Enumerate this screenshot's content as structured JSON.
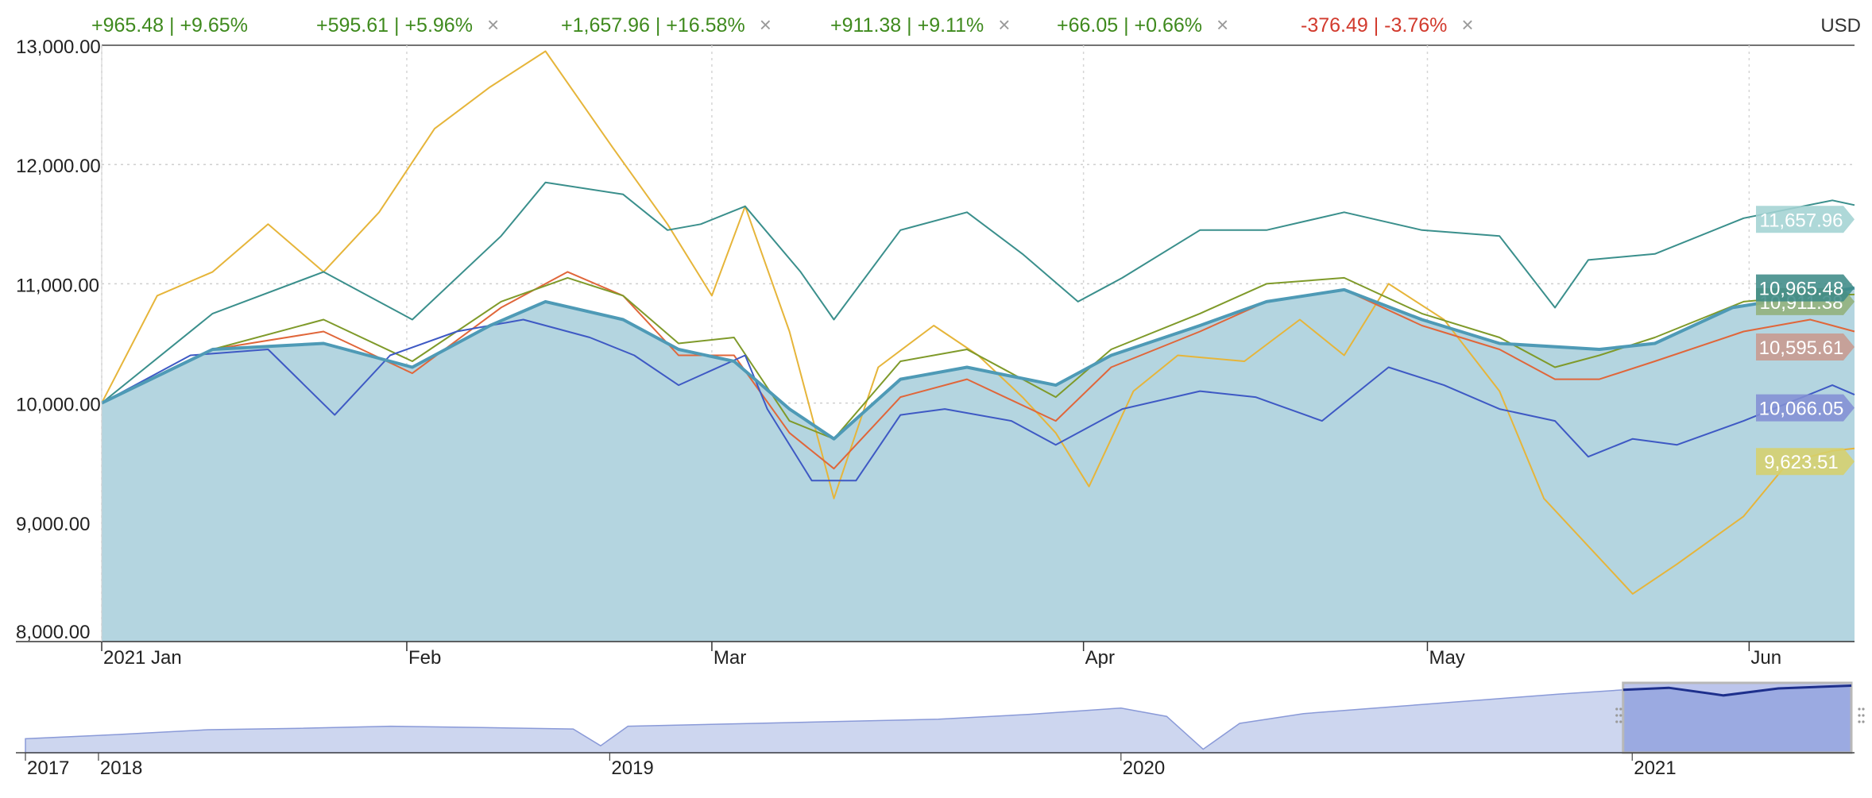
{
  "legend": [
    {
      "text": "+965.48 | +9.65%",
      "sign": "pos",
      "closable": false
    },
    {
      "text": "+595.61 | +5.96%",
      "sign": "pos",
      "closable": true
    },
    {
      "text": "+1,657.96 | +16.58%",
      "sign": "pos",
      "closable": true
    },
    {
      "text": "+911.38 | +9.11%",
      "sign": "pos",
      "closable": true
    },
    {
      "text": "+66.05 | +0.66%",
      "sign": "pos",
      "closable": true
    },
    {
      "text": "-376.49 | -3.76%",
      "sign": "neg",
      "closable": true
    }
  ],
  "close_glyph": "×",
  "currency": "USD",
  "chart_data": {
    "type": "line",
    "ylim": [
      8000,
      13000
    ],
    "y_ticks": [
      {
        "value": 8000,
        "label": "8,000.00"
      },
      {
        "value": 9000,
        "label": "9,000.00"
      },
      {
        "value": 10000,
        "label": "10,000.00"
      },
      {
        "value": 11000,
        "label": "11,000.00"
      },
      {
        "value": 12000,
        "label": "12,000.00"
      },
      {
        "value": 13000,
        "label": "13,000.00"
      }
    ],
    "x_ticks": [
      {
        "t": 0,
        "label": "2021 Jan"
      },
      {
        "t": 27.5,
        "label": "Feb"
      },
      {
        "t": 55,
        "label": "Mar"
      },
      {
        "t": 88.5,
        "label": "Apr"
      },
      {
        "t": 119.5,
        "label": "May"
      },
      {
        "t": 148.5,
        "label": "Jun"
      }
    ],
    "series": [
      {
        "id": "main",
        "color": "#4e9ab6",
        "fill": "#b4d5e0",
        "end_label": "10,965.48",
        "label_color": "#3f8b88",
        "label_at": 10965,
        "points": [
          [
            0,
            10000
          ],
          [
            10,
            10450
          ],
          [
            20,
            10500
          ],
          [
            28,
            10300
          ],
          [
            35,
            10650
          ],
          [
            40,
            10850
          ],
          [
            47,
            10700
          ],
          [
            52,
            10450
          ],
          [
            57,
            10350
          ],
          [
            62,
            9950
          ],
          [
            66,
            9700
          ],
          [
            72,
            10200
          ],
          [
            78,
            10300
          ],
          [
            86,
            10150
          ],
          [
            91,
            10400
          ],
          [
            99,
            10650
          ],
          [
            105,
            10850
          ],
          [
            112,
            10950
          ],
          [
            119,
            10700
          ],
          [
            126,
            10500
          ],
          [
            135,
            10450
          ],
          [
            140,
            10500
          ],
          [
            147,
            10800
          ],
          [
            158,
            10965
          ]
        ]
      },
      {
        "id": "teal",
        "color": "#3a8f8c",
        "end_label": "11,657.96",
        "label_color": "#a3d3d3",
        "label_at": 11540,
        "points": [
          [
            0,
            10000
          ],
          [
            10,
            10750
          ],
          [
            20,
            11100
          ],
          [
            28,
            10700
          ],
          [
            36,
            11400
          ],
          [
            40,
            11850
          ],
          [
            47,
            11750
          ],
          [
            51,
            11450
          ],
          [
            54,
            11500
          ],
          [
            58,
            11650
          ],
          [
            63,
            11100
          ],
          [
            66,
            10700
          ],
          [
            72,
            11450
          ],
          [
            78,
            11600
          ],
          [
            83,
            11250
          ],
          [
            88,
            10850
          ],
          [
            92,
            11050
          ],
          [
            99,
            11450
          ],
          [
            105,
            11450
          ],
          [
            112,
            11600
          ],
          [
            119,
            11450
          ],
          [
            126,
            11400
          ],
          [
            131,
            10800
          ],
          [
            134,
            11200
          ],
          [
            140,
            11250
          ],
          [
            148,
            11550
          ],
          [
            156,
            11700
          ],
          [
            158,
            11660
          ]
        ]
      },
      {
        "id": "gold",
        "color": "#e6b53a",
        "end_label": "9,623.51",
        "label_color": "#d6d06c",
        "label_at": 9510,
        "points": [
          [
            0,
            10000
          ],
          [
            5,
            10900
          ],
          [
            10,
            11100
          ],
          [
            15,
            11500
          ],
          [
            20,
            11100
          ],
          [
            25,
            11600
          ],
          [
            30,
            12300
          ],
          [
            35,
            12650
          ],
          [
            40,
            12950
          ],
          [
            46,
            12150
          ],
          [
            51,
            11500
          ],
          [
            55,
            10900
          ],
          [
            58,
            11650
          ],
          [
            62,
            10600
          ],
          [
            66,
            9200
          ],
          [
            70,
            10300
          ],
          [
            75,
            10650
          ],
          [
            79,
            10400
          ],
          [
            83,
            10050
          ],
          [
            86,
            9750
          ],
          [
            89,
            9300
          ],
          [
            93,
            10100
          ],
          [
            97,
            10400
          ],
          [
            103,
            10350
          ],
          [
            108,
            10700
          ],
          [
            112,
            10400
          ],
          [
            116,
            11000
          ],
          [
            121,
            10700
          ],
          [
            126,
            10100
          ],
          [
            130,
            9200
          ],
          [
            134,
            8800
          ],
          [
            138,
            8400
          ],
          [
            142,
            8650
          ],
          [
            148,
            9050
          ],
          [
            152,
            9500
          ],
          [
            156,
            9600
          ],
          [
            158,
            9620
          ]
        ]
      },
      {
        "id": "orange",
        "color": "#e0663a",
        "end_label": "10,595.61",
        "label_color": "#c89a8e",
        "label_at": 10470,
        "points": [
          [
            0,
            10000
          ],
          [
            10,
            10450
          ],
          [
            20,
            10600
          ],
          [
            28,
            10250
          ],
          [
            36,
            10800
          ],
          [
            42,
            11100
          ],
          [
            47,
            10900
          ],
          [
            52,
            10400
          ],
          [
            57,
            10400
          ],
          [
            62,
            9750
          ],
          [
            66,
            9450
          ],
          [
            72,
            10050
          ],
          [
            78,
            10200
          ],
          [
            86,
            9850
          ],
          [
            91,
            10300
          ],
          [
            99,
            10600
          ],
          [
            105,
            10850
          ],
          [
            112,
            10950
          ],
          [
            119,
            10650
          ],
          [
            126,
            10450
          ],
          [
            131,
            10200
          ],
          [
            135,
            10200
          ],
          [
            140,
            10350
          ],
          [
            148,
            10600
          ],
          [
            154,
            10700
          ],
          [
            158,
            10600
          ]
        ]
      },
      {
        "id": "olive",
        "color": "#7f9a2a",
        "end_label": "10,911.38",
        "label_color": "#92b07a",
        "label_at": 10850,
        "points": [
          [
            0,
            10000
          ],
          [
            10,
            10450
          ],
          [
            20,
            10700
          ],
          [
            28,
            10350
          ],
          [
            36,
            10850
          ],
          [
            42,
            11050
          ],
          [
            47,
            10900
          ],
          [
            52,
            10500
          ],
          [
            57,
            10550
          ],
          [
            62,
            9850
          ],
          [
            66,
            9700
          ],
          [
            72,
            10350
          ],
          [
            78,
            10450
          ],
          [
            86,
            10050
          ],
          [
            91,
            10450
          ],
          [
            99,
            10750
          ],
          [
            105,
            11000
          ],
          [
            112,
            11050
          ],
          [
            119,
            10750
          ],
          [
            126,
            10550
          ],
          [
            131,
            10300
          ],
          [
            135,
            10400
          ],
          [
            140,
            10550
          ],
          [
            148,
            10850
          ],
          [
            154,
            10900
          ],
          [
            158,
            10910
          ]
        ]
      },
      {
        "id": "blue",
        "color": "#3e59c4",
        "end_label": "10,066.05",
        "label_color": "#8390d4",
        "label_at": 9960,
        "points": [
          [
            0,
            10000
          ],
          [
            8,
            10400
          ],
          [
            15,
            10450
          ],
          [
            21,
            9900
          ],
          [
            26,
            10400
          ],
          [
            32,
            10600
          ],
          [
            38,
            10700
          ],
          [
            44,
            10550
          ],
          [
            48,
            10400
          ],
          [
            52,
            10150
          ],
          [
            58,
            10400
          ],
          [
            60,
            9950
          ],
          [
            64,
            9350
          ],
          [
            68,
            9350
          ],
          [
            72,
            9900
          ],
          [
            76,
            9950
          ],
          [
            82,
            9850
          ],
          [
            86,
            9650
          ],
          [
            92,
            9950
          ],
          [
            99,
            10100
          ],
          [
            104,
            10050
          ],
          [
            110,
            9850
          ],
          [
            116,
            10300
          ],
          [
            121,
            10150
          ],
          [
            126,
            9950
          ],
          [
            131,
            9850
          ],
          [
            134,
            9550
          ],
          [
            138,
            9700
          ],
          [
            142,
            9650
          ],
          [
            148,
            9850
          ],
          [
            152,
            10000
          ],
          [
            156,
            10150
          ],
          [
            158,
            10070
          ]
        ]
      }
    ]
  },
  "navigator": {
    "ticks": [
      {
        "pos": 0.0,
        "label": "2017"
      },
      {
        "pos": 0.04,
        "label": "2018"
      },
      {
        "pos": 0.32,
        "label": "2019"
      },
      {
        "pos": 0.6,
        "label": "2020"
      },
      {
        "pos": 0.88,
        "label": "2021"
      }
    ],
    "range": [
      0.875,
      1.0
    ],
    "profile": [
      [
        0,
        0.2
      ],
      [
        0.05,
        0.26
      ],
      [
        0.1,
        0.33
      ],
      [
        0.15,
        0.35
      ],
      [
        0.2,
        0.38
      ],
      [
        0.25,
        0.36
      ],
      [
        0.3,
        0.34
      ],
      [
        0.315,
        0.1
      ],
      [
        0.33,
        0.38
      ],
      [
        0.4,
        0.42
      ],
      [
        0.45,
        0.45
      ],
      [
        0.5,
        0.48
      ],
      [
        0.55,
        0.55
      ],
      [
        0.6,
        0.64
      ],
      [
        0.625,
        0.52
      ],
      [
        0.645,
        0.05
      ],
      [
        0.665,
        0.42
      ],
      [
        0.7,
        0.56
      ],
      [
        0.75,
        0.66
      ],
      [
        0.8,
        0.76
      ],
      [
        0.84,
        0.84
      ],
      [
        0.875,
        0.9
      ],
      [
        0.9,
        0.93
      ],
      [
        0.93,
        0.82
      ],
      [
        0.96,
        0.92
      ],
      [
        1.0,
        0.96
      ]
    ]
  }
}
